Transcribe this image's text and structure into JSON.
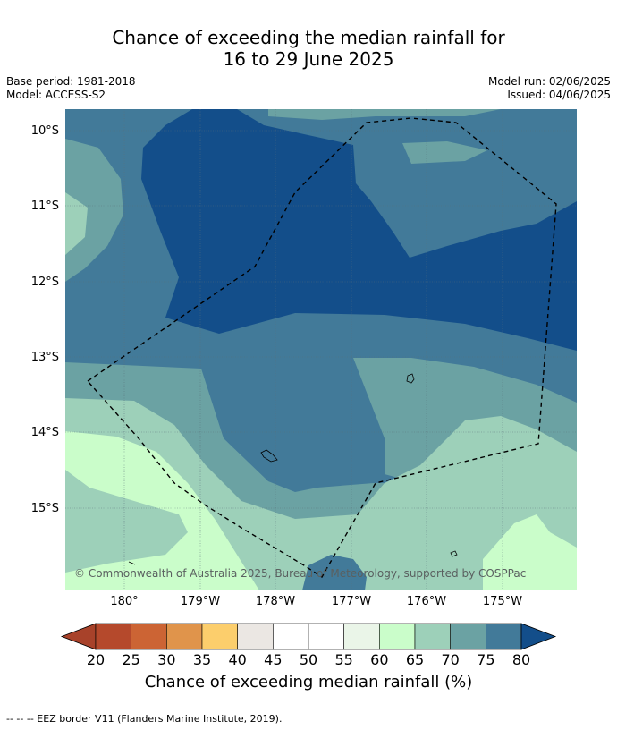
{
  "title_line1": "Chance of exceeding the median rainfall for",
  "title_line2": "16 to 29 June 2025",
  "base_period": "Base period: 1981-2018",
  "model": "Model: ACCESS-S2",
  "model_run": "Model run: 02/06/2025",
  "issued": "Issued: 04/06/2025",
  "lat_labels": [
    "10°S",
    "11°S",
    "12°S",
    "13°S",
    "14°S",
    "15°S"
  ],
  "lon_labels": [
    "180°",
    "179°W",
    "178°W",
    "177°W",
    "176°W",
    "175°W"
  ],
  "copyright": "© Commonwealth of Australia 2025, Bureau of Meteorology, supported by COSPPac",
  "colorbar": {
    "ticks": [
      "20",
      "25",
      "30",
      "35",
      "40",
      "45",
      "50",
      "55",
      "60",
      "65",
      "70",
      "75",
      "80"
    ],
    "colors": [
      "#a8422a",
      "#b5492c",
      "#cc6434",
      "#e0944b",
      "#fcce6c",
      "#ebe7e3",
      "#ffffff",
      "#ffffff",
      "#eaf5e8",
      "#cafdca",
      "#9dd0b9",
      "#6ba2a3",
      "#427a99",
      "#134e8a"
    ],
    "label": "Chance of exceeding median rainfall (%)"
  },
  "footer": "--  --  -- EEZ border V11 (Flanders Marine Institute, 2019)."
}
